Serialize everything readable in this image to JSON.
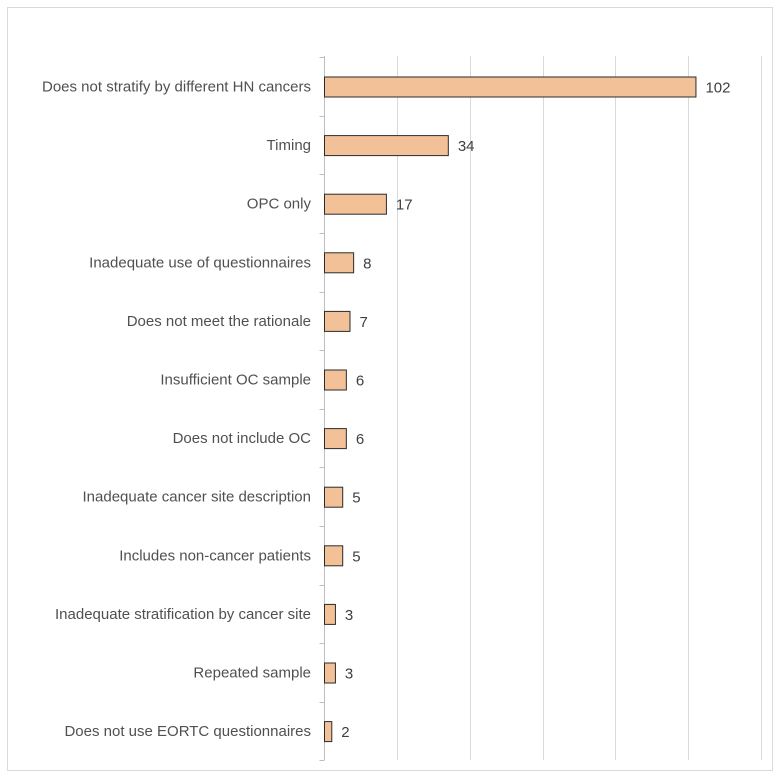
{
  "chart_data": {
    "type": "bar",
    "orientation": "horizontal",
    "categories": [
      "Does not stratify by different HN cancers",
      "Timing",
      "OPC only",
      "Inadequate use of questionnaires",
      "Does not meet the rationale",
      "Insufficient OC sample",
      "Does not include OC",
      "Inadequate cancer site description",
      "Includes non-cancer patients",
      "Inadequate stratification by cancer site",
      "Repeated sample",
      "Does not use EORTC questionnaires"
    ],
    "values": [
      102,
      34,
      17,
      8,
      7,
      6,
      6,
      5,
      5,
      3,
      3,
      2
    ],
    "title": "",
    "xlabel": "",
    "ylabel": "",
    "xlim": [
      0,
      120
    ],
    "gridlines": [
      0,
      20,
      40,
      60,
      80,
      100,
      120
    ],
    "grid": true,
    "x_tick_labels_shown": false,
    "data_labels": true,
    "bar_color": "#f2c197",
    "bar_edge_color": "#2b2b2b",
    "legend": "none"
  }
}
